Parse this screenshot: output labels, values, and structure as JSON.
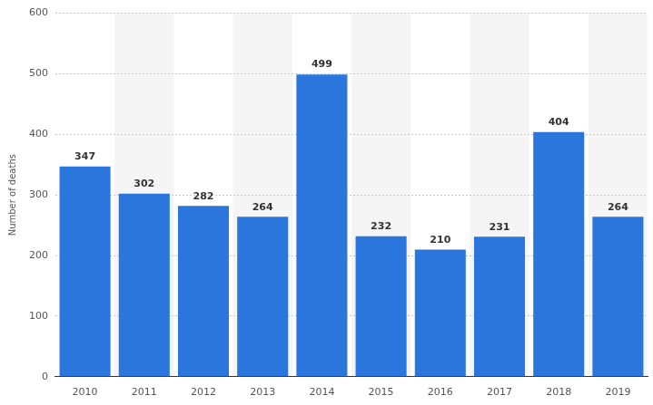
{
  "chart_data": {
    "type": "bar",
    "y_label": "Number of deaths",
    "categories": [
      "2010",
      "2011",
      "2012",
      "2013",
      "2014",
      "2015",
      "2016",
      "2017",
      "2018",
      "2019"
    ],
    "values": [
      347,
      302,
      282,
      264,
      499,
      232,
      210,
      231,
      404,
      264
    ],
    "color": "#2b76dc",
    "ylim": [
      0,
      600
    ],
    "yticks": [
      0,
      100,
      200,
      300,
      400,
      500,
      600
    ],
    "grid": true,
    "data_labels": true
  }
}
